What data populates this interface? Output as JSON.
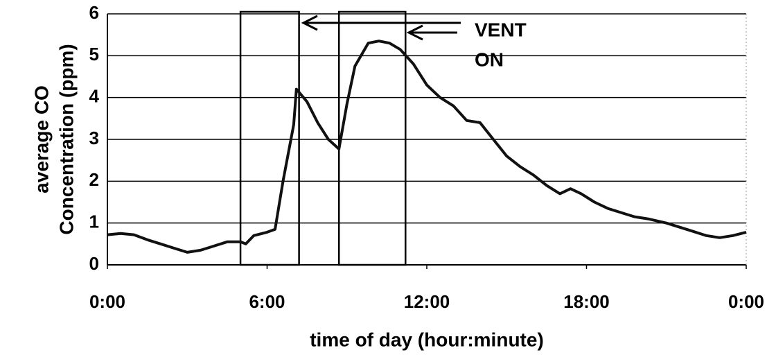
{
  "chart_data": {
    "type": "line",
    "xlabel": "time of day (hour:minute)",
    "ylabel": [
      "average CO",
      "Concentration (ppm)"
    ],
    "annotation": [
      "VENT",
      "ON"
    ],
    "vent_periods": [
      [
        5.0,
        7.2
      ],
      [
        8.7,
        11.2
      ]
    ],
    "xlim": [
      0,
      24
    ],
    "ylim": [
      0,
      6
    ],
    "xticks": [
      {
        "value": 0,
        "label": "0:00"
      },
      {
        "value": 6,
        "label": "6:00"
      },
      {
        "value": 12,
        "label": "12:00"
      },
      {
        "value": 18,
        "label": "18:00"
      },
      {
        "value": 24,
        "label": "0:00"
      }
    ],
    "yticks": [
      0,
      1,
      2,
      3,
      4,
      5,
      6
    ],
    "grid": true,
    "x": [
      0,
      0.5,
      1,
      1.5,
      2,
      2.5,
      3,
      3.5,
      4,
      4.5,
      5,
      5.2,
      5.5,
      6,
      6.3,
      6.6,
      7,
      7.1,
      7.5,
      7.9,
      8.3,
      8.7,
      9,
      9.3,
      9.8,
      10.2,
      10.6,
      11,
      11.5,
      12,
      12.5,
      13,
      13.5,
      14,
      14.5,
      15,
      15.5,
      16,
      16.5,
      17,
      17.4,
      17.8,
      18.3,
      18.8,
      19.3,
      19.8,
      20.3,
      21,
      21.5,
      22,
      22.5,
      23,
      23.5,
      24
    ],
    "series": [
      {
        "color": "#111111",
        "values": [
          0.72,
          0.75,
          0.72,
          0.6,
          0.5,
          0.4,
          0.3,
          0.35,
          0.45,
          0.55,
          0.55,
          0.5,
          0.7,
          0.78,
          0.85,
          2.0,
          3.35,
          4.2,
          3.9,
          3.4,
          3.0,
          2.77,
          3.85,
          4.75,
          5.3,
          5.35,
          5.3,
          5.15,
          4.8,
          4.3,
          4.0,
          3.8,
          3.45,
          3.4,
          3.0,
          2.6,
          2.35,
          2.15,
          1.9,
          1.7,
          1.82,
          1.7,
          1.5,
          1.35,
          1.25,
          1.15,
          1.1,
          1.0,
          0.9,
          0.8,
          0.7,
          0.65,
          0.7,
          0.78
        ]
      }
    ]
  }
}
